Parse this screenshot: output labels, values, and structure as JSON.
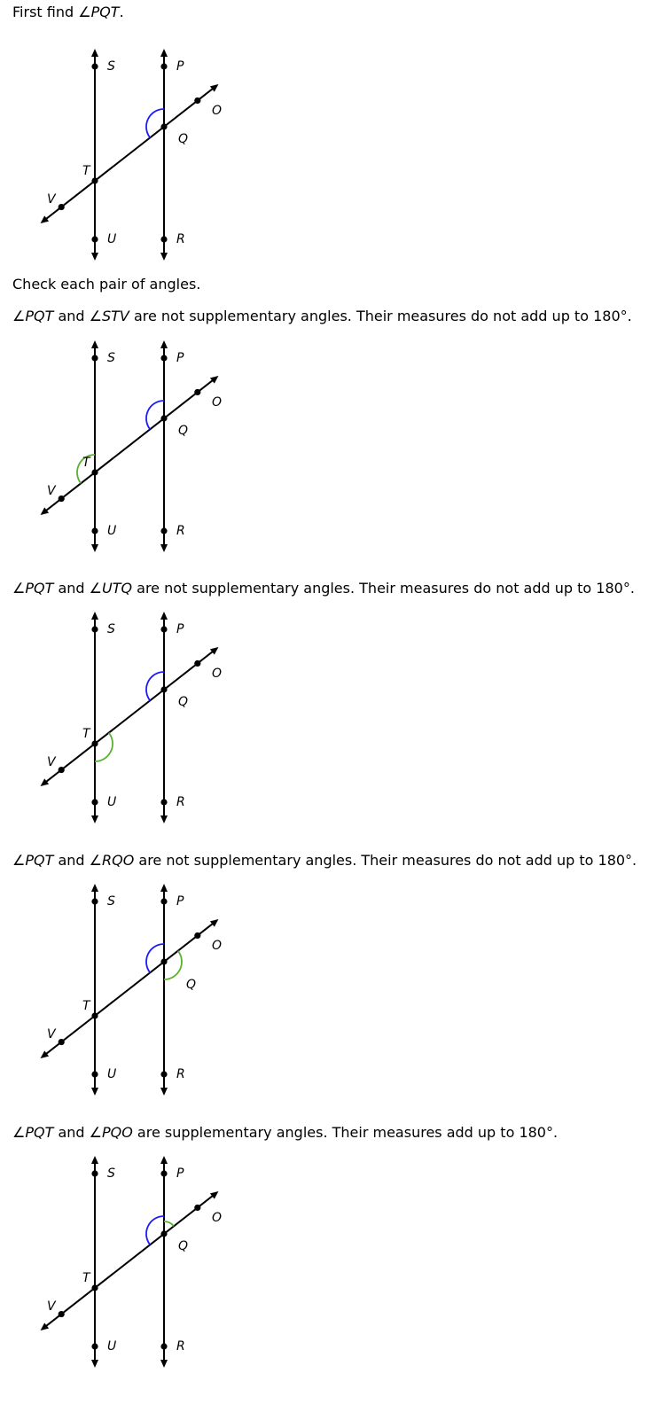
{
  "intro": {
    "text": "First find ",
    "angle": "∠PQT",
    "end": "."
  },
  "check_text": "Check each pair of angles.",
  "labels": {
    "S": "S",
    "P": "P",
    "O": "O",
    "Q": "Q",
    "T": "T",
    "V": "V",
    "U": "U",
    "R": "R"
  },
  "colors": {
    "primary_arc": "#1a1aff",
    "compare_arc": "#5cb030",
    "line": "#000000"
  },
  "pairs": [
    {
      "a": "∠PQT",
      "and": " and ",
      "b": "∠STV",
      "rest": " are not supplementary angles. Their measures do not add up to 180°.",
      "highlight": "STV"
    },
    {
      "a": "∠PQT",
      "and": " and ",
      "b": "∠UTQ",
      "rest": " are not supplementary angles. Their measures do not add up to 180°.",
      "highlight": "UTQ"
    },
    {
      "a": "∠PQT",
      "and": " and ",
      "b": "∠RQO",
      "rest": " are not supplementary angles. Their measures do not add up to 180°.",
      "highlight": "RQO"
    },
    {
      "a": "∠PQT",
      "and": " and ",
      "b": "∠PQO",
      "rest": " are supplementary angles. Their measures add up to 180°.",
      "highlight": "PQO"
    }
  ]
}
